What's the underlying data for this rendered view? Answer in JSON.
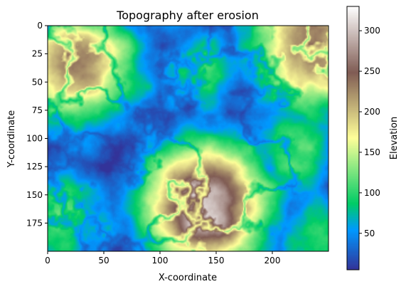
{
  "chart_data": {
    "type": "heatmap",
    "title": "Topography after erosion",
    "xlabel": "X-coordinate",
    "ylabel": "Y-coordinate",
    "xlim": [
      0,
      250
    ],
    "ylim": [
      200,
      0
    ],
    "x_ticks": [
      "0",
      "50",
      "100",
      "150",
      "200"
    ],
    "y_ticks": [
      "0",
      "25",
      "50",
      "75",
      "100",
      "125",
      "150",
      "175"
    ],
    "colorbar": {
      "label": "Elevation",
      "range": [
        5,
        330
      ],
      "ticks": [
        "50",
        "100",
        "150",
        "200",
        "250",
        "300"
      ]
    },
    "colormap": "terrain",
    "features": [
      {
        "name": "central massif (peak)",
        "x": 140,
        "y": 160,
        "elevation": 320
      },
      {
        "name": "north-west ridge",
        "x": 25,
        "y": 35,
        "elevation": 230
      },
      {
        "name": "north-east ridge",
        "x": 235,
        "y": 20,
        "elevation": 240
      },
      {
        "name": "south-west hills",
        "x": 15,
        "y": 170,
        "elevation": 110
      },
      {
        "name": "south-east hills",
        "x": 240,
        "y": 185,
        "elevation": 100
      },
      {
        "name": "central-north plateau",
        "x": 140,
        "y": 40,
        "elevation": 95
      },
      {
        "name": "east-central plateau",
        "x": 215,
        "y": 110,
        "elevation": 110
      }
    ]
  }
}
